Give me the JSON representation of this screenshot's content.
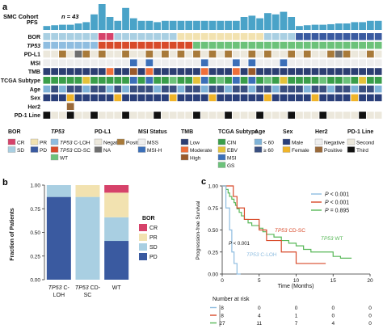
{
  "panel_labels": {
    "a": "a",
    "b": "b",
    "c": "c"
  },
  "cohort": {
    "label": "SMC Cohort",
    "n": "n = 43"
  },
  "pfs_label": "PFS",
  "pfs_values": [
    0.15,
    0.18,
    0.2,
    0.2,
    0.25,
    0.3,
    0.6,
    1.0,
    0.5,
    0.35,
    0.85,
    0.45,
    0.35,
    0.35,
    0.3,
    0.35,
    0.35,
    0.35,
    0.35,
    0.35,
    0.35,
    0.35,
    0.35,
    0.35,
    0.35,
    0.5,
    0.55,
    0.45,
    0.65,
    0.6,
    0.7,
    0.5,
    0.15,
    0.18,
    0.2,
    0.2,
    0.22,
    0.25,
    0.25,
    0.3,
    0.3,
    0.35,
    0.35
  ],
  "row_labels": [
    "BOR",
    "TP53",
    "PD-L1",
    "MSI",
    "TMB",
    "TCGA Subtype",
    "Age",
    "Sex",
    "Her2",
    "PD-1 Line"
  ],
  "legend": {
    "bor": {
      "title": "BOR",
      "items": [
        "CR",
        "PR",
        "SD",
        "PD"
      ]
    },
    "tp53": {
      "title": "TP53",
      "items": [
        "TP53 C-LOH",
        "TP53 CD-SC",
        "WT"
      ]
    },
    "pdl1": {
      "title": "PD-L1",
      "items": [
        "Negative",
        "Positive",
        "NA"
      ]
    },
    "msi": {
      "title": "MSI Status",
      "items": [
        "MSS",
        "MSI-H"
      ]
    },
    "tmb": {
      "title": "TMB",
      "items": [
        "Low",
        "Moderate",
        "High"
      ]
    },
    "tcga": {
      "title": "TCGA Subtype",
      "items": [
        "CIN",
        "EBV",
        "MSI",
        "GS"
      ]
    },
    "age": {
      "title": "Age",
      "items": [
        "< 60",
        "≥ 60"
      ]
    },
    "sex": {
      "title": "Sex",
      "items": [
        "Male",
        "Female"
      ]
    },
    "her2": {
      "title": "Her2",
      "items": [
        "Negative",
        "Positive"
      ]
    },
    "pd1": {
      "title": "PD-1 Line",
      "items": [
        "Second",
        "Third"
      ]
    }
  },
  "colors": {
    "CR": "#d6426a",
    "PR": "#f2e2b0",
    "SD": "#a9cfe2",
    "PD": "#3a5aa0",
    "CLOH": "#8fbde0",
    "CDSC": "#d84a2a",
    "WT": "#6cc27a",
    "PDNeg": "#ece8dc",
    "PDPos": "#a87a3a",
    "PDNA": "#6f6f6f",
    "MSS": "#eeeeee",
    "MSIH": "#3b6fb8",
    "TMBLow": "#2c3e72",
    "TMBMod": "#ef6f3a",
    "TMBHigh": "#9a5a2a",
    "CIN": "#3a9e4a",
    "EBV": "#e4c23a",
    "MSI": "#3b6fb8",
    "GS": "#6cc27a",
    "Age1": "#7fb3d8",
    "Age2": "#3a4f80",
    "Male": "#2a3f7a",
    "Female": "#f0b429",
    "Her2Neg": "#eeeeee",
    "Her2Pos": "#9a6a3a",
    "Second": "#ece8dc",
    "Third": "#111111",
    "WTline": "#58b858",
    "CDSCline": "#d84a2a",
    "CLOHline": "#8fbde0"
  },
  "chart_data": [
    {
      "type": "bar",
      "categories": [
        "TP53 C-LOH",
        "TP53 CD-SC",
        "WT"
      ],
      "series": [
        {
          "name": "PD",
          "values": [
            0.875,
            0.0,
            0.41
          ]
        },
        {
          "name": "SD",
          "values": [
            0.125,
            0.875,
            0.25
          ]
        },
        {
          "name": "PR",
          "values": [
            0.0,
            0.125,
            0.26
          ]
        },
        {
          "name": "CR",
          "values": [
            0.0,
            0.0,
            0.08
          ]
        }
      ],
      "ylabel": "Fraction of Patients",
      "ylim": [
        0,
        1
      ],
      "yticks": [
        "0.00",
        "0.25",
        "0.50",
        "0.75",
        "1.00"
      ],
      "legend_title": "BOR",
      "legend_items": [
        "CR",
        "PR",
        "SD",
        "PD"
      ]
    },
    {
      "type": "line",
      "ylabel": "Progression-free Survival",
      "xlabel": "Time (Months)",
      "xlim": [
        0,
        20
      ],
      "ylim": [
        0,
        1
      ],
      "xticks": [
        "0",
        "5",
        "10",
        "15",
        "20"
      ],
      "yticks": [
        "0.00",
        "0.25",
        "0.50",
        "0.75",
        "1.00"
      ],
      "series": [
        {
          "name": "TP53 WT",
          "x": [
            0,
            0.5,
            0.8,
            1.0,
            1.3,
            1.6,
            1.8,
            2.0,
            2.3,
            2.6,
            3.0,
            3.5,
            4.0,
            5.0,
            5.5,
            6.0,
            7.0,
            8.0,
            9.0,
            10.0,
            11.0,
            12.0,
            13.5,
            15.0,
            16.0,
            17.5
          ],
          "y": [
            1.0,
            0.96,
            0.92,
            0.88,
            0.85,
            0.81,
            0.78,
            0.74,
            0.7,
            0.66,
            0.62,
            0.58,
            0.55,
            0.52,
            0.48,
            0.45,
            0.42,
            0.38,
            0.35,
            0.32,
            0.28,
            0.25,
            0.25,
            0.2,
            0.18,
            0.18
          ]
        },
        {
          "name": "TP53 CD-SC",
          "x": [
            0,
            1.5,
            2.0,
            3.0,
            5.0,
            6.0,
            8.0,
            10.0,
            14.0
          ],
          "y": [
            1.0,
            0.88,
            0.75,
            0.62,
            0.5,
            0.38,
            0.25,
            0.12,
            0.12
          ]
        },
        {
          "name": "TP53 C-LOH",
          "x": [
            0,
            0.5,
            1.0,
            1.3,
            1.6,
            2.0,
            2.5
          ],
          "y": [
            1.0,
            0.75,
            0.5,
            0.25,
            0.12,
            0.0,
            0.0
          ]
        }
      ],
      "legend_items": [
        "P < 0.001",
        "P < 0.001",
        "P = 0.895"
      ],
      "annotations": [
        "TP53 CD-SC",
        "TP53 WT",
        "P < 0.001",
        "TP53 C-LOH"
      ],
      "risk_title": "Number at risk",
      "risk_x": [
        "0",
        "5",
        "10",
        "15",
        "20"
      ],
      "risk_rows": [
        [
          "8",
          "0",
          "0",
          "0",
          "0"
        ],
        [
          "8",
          "4",
          "1",
          "0",
          "0"
        ],
        [
          "27",
          "11",
          "7",
          "4",
          "0"
        ]
      ]
    }
  ]
}
